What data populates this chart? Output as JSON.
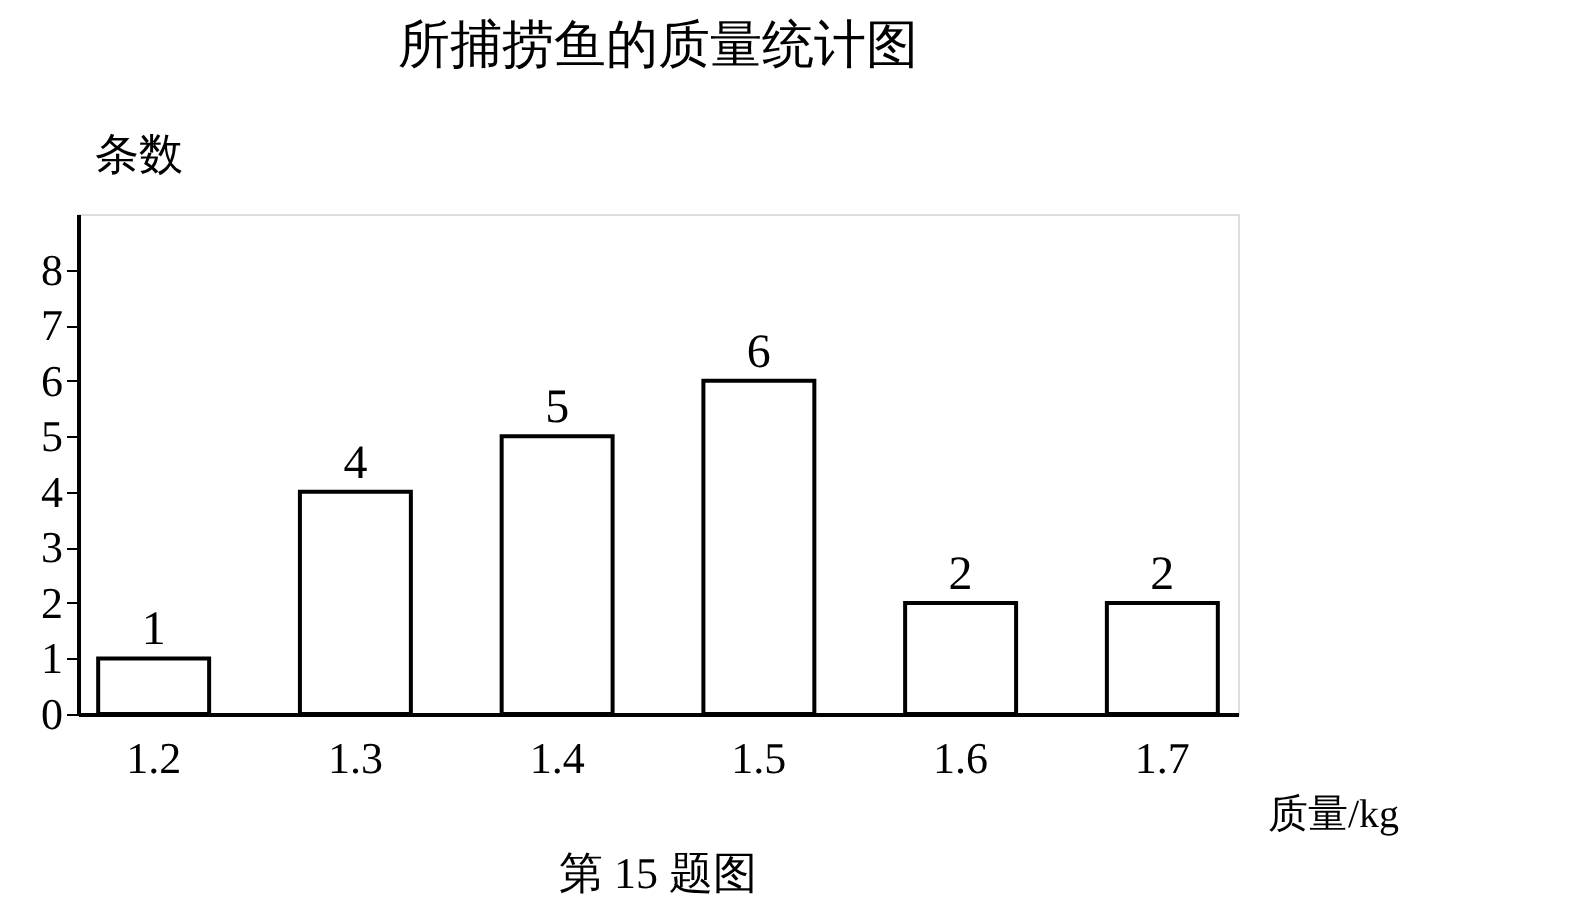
{
  "chart_data": {
    "type": "bar",
    "title": "所捕捞鱼的质量统计图",
    "categories": [
      "1.2",
      "1.3",
      "1.4",
      "1.5",
      "1.6",
      "1.7"
    ],
    "values": [
      1,
      4,
      5,
      6,
      2,
      2
    ],
    "color": "#ffffff",
    "ylim": [
      0,
      9
    ],
    "yticks": [
      0,
      1,
      2,
      3,
      4,
      5,
      6,
      7,
      8
    ],
    "xlabel": "质量/kg",
    "ylabel": "条数",
    "data_labels": true,
    "grid": false,
    "annotations": [
      "第 15 题图"
    ]
  }
}
